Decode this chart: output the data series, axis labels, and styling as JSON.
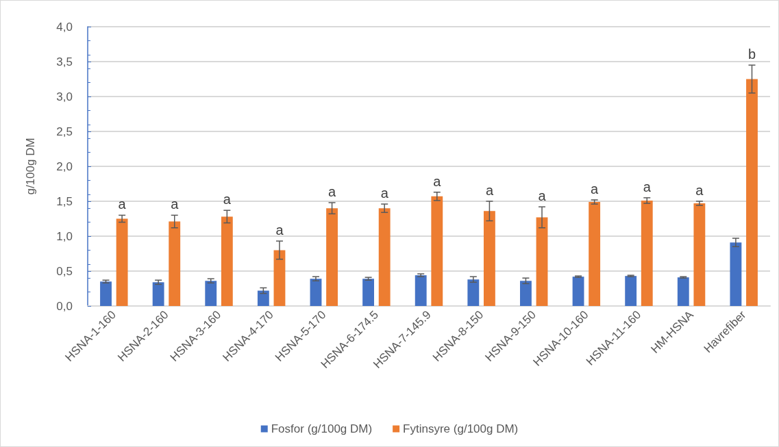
{
  "chart_data": {
    "type": "bar",
    "ylabel": "g/100g DM",
    "categories": [
      "HSNA-1-160",
      "HSNA-2-160",
      "HSNA-3-160",
      "HSNA-4-170",
      "HSNA-5-170",
      "HSNA-6-174.5",
      "HSNA-7-145.9",
      "HSNA-8-150",
      "HSNA-9-150",
      "HSNA-10-160",
      "HSNA-11-160",
      "HM-HSNA",
      "Havrefiber"
    ],
    "series": [
      {
        "name": "Fosfor (g/100g DM)",
        "color": "#4472c4",
        "values": [
          0.35,
          0.34,
          0.36,
          0.22,
          0.39,
          0.39,
          0.44,
          0.38,
          0.36,
          0.42,
          0.43,
          0.41,
          0.91
        ],
        "errors": [
          0.02,
          0.03,
          0.03,
          0.04,
          0.03,
          0.02,
          0.02,
          0.04,
          0.04,
          0.01,
          0.01,
          0.01,
          0.06
        ]
      },
      {
        "name": "Fytinsyre (g/100g DM)",
        "color": "#ed7d31",
        "values": [
          1.25,
          1.21,
          1.28,
          0.8,
          1.4,
          1.4,
          1.57,
          1.36,
          1.27,
          1.49,
          1.51,
          1.47,
          3.25
        ],
        "errors": [
          0.05,
          0.09,
          0.09,
          0.13,
          0.08,
          0.06,
          0.06,
          0.14,
          0.15,
          0.03,
          0.04,
          0.03,
          0.2
        ]
      }
    ],
    "ylim": [
      0,
      4
    ],
    "yticks": [
      {
        "value": 0,
        "label": "0,0"
      },
      {
        "value": 0.5,
        "label": "0,5"
      },
      {
        "value": 1,
        "label": "1,0"
      },
      {
        "value": 1.5,
        "label": "1,5"
      },
      {
        "value": 2,
        "label": "2,0"
      },
      {
        "value": 2.5,
        "label": "2,5"
      },
      {
        "value": 3,
        "label": "3,0"
      },
      {
        "value": 3.5,
        "label": "3,5"
      },
      {
        "value": 4,
        "label": "4,0"
      }
    ],
    "grid": "y",
    "legend": "bottom",
    "annotations": [
      {
        "text": "a",
        "x": "HSNA-1-160",
        "y": 1.25
      },
      {
        "text": "a",
        "x": "HSNA-2-160",
        "y": 1.21
      },
      {
        "text": "a",
        "x": "HSNA-3-160",
        "y": 1.28
      },
      {
        "text": "a",
        "x": "HSNA-4-170",
        "y": 0.8
      },
      {
        "text": "a",
        "x": "HSNA-5-170",
        "y": 1.4
      },
      {
        "text": "a",
        "x": "HSNA-6-174.5",
        "y": 1.4
      },
      {
        "text": "a",
        "x": "HSNA-7-145.9",
        "y": 1.57
      },
      {
        "text": "a",
        "x": "HSNA-8-150",
        "y": 1.36
      },
      {
        "text": "a",
        "x": "HSNA-9-150",
        "y": 1.27
      },
      {
        "text": "a",
        "x": "HSNA-10-160",
        "y": 1.49
      },
      {
        "text": "a",
        "x": "HSNA-11-160",
        "y": 1.51
      },
      {
        "text": "a",
        "x": "HM-HSNA",
        "y": 1.47
      },
      {
        "text": "b",
        "x": "Havrefiber",
        "y": 3.25
      }
    ]
  }
}
